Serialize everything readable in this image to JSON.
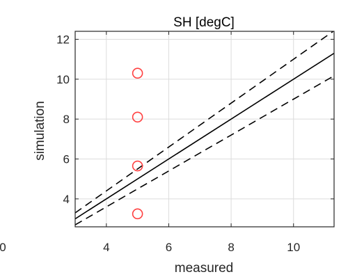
{
  "chart_data": {
    "type": "scatter",
    "title": "SH [degC]",
    "xlabel": "measured",
    "ylabel": "simulation",
    "xlim": [
      3,
      11.3
    ],
    "ylim": [
      2.6,
      12.4
    ],
    "xticks": [
      4,
      6,
      8,
      10
    ],
    "yticks": [
      4,
      6,
      8,
      10,
      12
    ],
    "xtick_labels": [
      "4",
      "6",
      "8",
      "10"
    ],
    "ytick_labels": [
      "4",
      "6",
      "8",
      "10",
      "12"
    ],
    "clipped_x_tick_label": "0",
    "grid": true,
    "points": [
      {
        "x": 5,
        "y": 10.3
      },
      {
        "x": 5,
        "y": 8.1
      },
      {
        "x": 5,
        "y": 5.65
      },
      {
        "x": 5,
        "y": 3.25
      }
    ],
    "reference_lines": [
      {
        "style": "solid",
        "slope": 1,
        "intercept": 0
      },
      {
        "style": "dashed",
        "slope": 1.1,
        "intercept": 0
      },
      {
        "style": "dashed",
        "slope": 0.9,
        "intercept": 0
      }
    ],
    "colors": {
      "marker": "#ff4040",
      "lines": "#000000",
      "grid": "#dcdcdc"
    }
  }
}
